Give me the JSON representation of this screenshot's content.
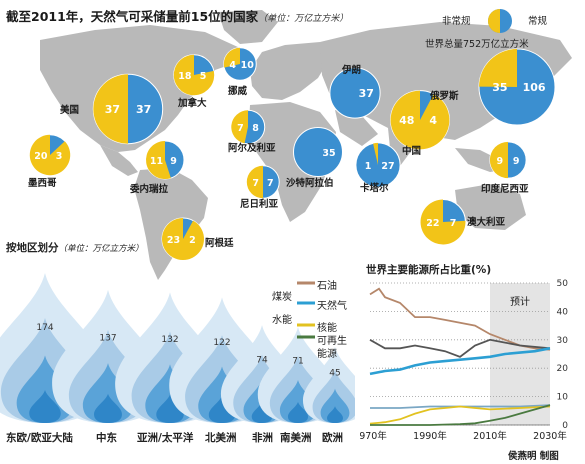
{
  "title": "截至2011年，天然气可采储量前15位的国家",
  "title_unit": "（单位：万亿立方米）",
  "legend": {
    "nonconventional": "非常规",
    "conventional": "常规"
  },
  "world_total": "世界总量752万亿立方米",
  "colors": {
    "nonconventional": "#f2c418",
    "conventional": "#3b8fd0",
    "map": "#b9b9b9",
    "flame_light": "#cfe3f3",
    "flame_dark": "#2f86c8"
  },
  "chart_data": [
    {
      "type": "pie",
      "title": "截至2011年，天然气可采储量前15位的国家",
      "unit": "万亿立方米",
      "legend": [
        "非常规",
        "常规"
      ],
      "countries": [
        {
          "name": "美国",
          "nonconventional": 37,
          "conventional": 37
        },
        {
          "name": "加拿大",
          "nonconventional": 18,
          "conventional": 5
        },
        {
          "name": "挪威",
          "nonconventional": 4,
          "conventional": 10
        },
        {
          "name": "伊朗",
          "nonconventional": 0,
          "conventional": 37
        },
        {
          "name": "俄罗斯",
          "nonconventional": 35,
          "conventional": 106
        },
        {
          "name": "墨西哥",
          "nonconventional": 20,
          "conventional": 3
        },
        {
          "name": "委内瑞拉",
          "nonconventional": 11,
          "conventional": 9
        },
        {
          "name": "阿尔及利亚",
          "nonconventional": 7,
          "conventional": 8
        },
        {
          "name": "沙特阿拉伯",
          "nonconventional": 0,
          "conventional": 35
        },
        {
          "name": "卡塔尔",
          "nonconventional": 1,
          "conventional": 27
        },
        {
          "name": "中国",
          "nonconventional": 48,
          "conventional": 4
        },
        {
          "name": "印度尼西亚",
          "nonconventional": 9,
          "conventional": 9
        },
        {
          "name": "尼日利亚",
          "nonconventional": 7,
          "conventional": 7
        },
        {
          "name": "澳大利亚",
          "nonconventional": 22,
          "conventional": 7
        },
        {
          "name": "阿根廷",
          "nonconventional": 23,
          "conventional": 2
        }
      ]
    },
    {
      "type": "bar",
      "title": "按地区划分",
      "unit": "（单位：万亿立方米）",
      "categories": [
        "东欧/欧亚大陆",
        "中东",
        "亚洲/太平洋",
        "北美洲",
        "非洲",
        "南美洲",
        "欧洲"
      ],
      "values": [
        174,
        137,
        132,
        122,
        74,
        71,
        45
      ]
    },
    {
      "type": "line",
      "title": "世界主要能源所占比重(%)",
      "x_ticks": [
        "1970年",
        "1990年",
        "2010年",
        "2030年"
      ],
      "y_ticks": [
        "0",
        "10",
        "20",
        "30",
        "40",
        "50"
      ],
      "xlim": [
        1970,
        2030
      ],
      "ylim": [
        0,
        50
      ],
      "forecast_label": "预计",
      "forecast_range": [
        2010,
        2030
      ],
      "series": [
        {
          "name": "石油",
          "color": "#b5876a",
          "x": [
            1970,
            1973,
            1975,
            1980,
            1985,
            1990,
            1995,
            2000,
            2005,
            2010,
            2015,
            2020,
            2025,
            2030
          ],
          "y": [
            46,
            48,
            45,
            43,
            38,
            38,
            37,
            36,
            35,
            32,
            30,
            28,
            27,
            26.5
          ]
        },
        {
          "name": "煤炭",
          "color": "#555555",
          "x": [
            1970,
            1975,
            1980,
            1985,
            1990,
            1995,
            2000,
            2005,
            2010,
            2015,
            2020,
            2025,
            2030
          ],
          "y": [
            30,
            27,
            27,
            28,
            27,
            26,
            24,
            28,
            30,
            29,
            28,
            27.5,
            27
          ]
        },
        {
          "name": "天然气",
          "color": "#2c9fd3",
          "x": [
            1970,
            1975,
            1980,
            1985,
            1990,
            1995,
            2000,
            2005,
            2010,
            2015,
            2020,
            2025,
            2030
          ],
          "y": [
            18,
            19,
            19.5,
            21,
            22,
            22.5,
            23,
            23.5,
            24,
            25,
            25.5,
            26,
            27
          ]
        },
        {
          "name": "水能",
          "color": "#7aa7c4",
          "x": [
            1970,
            1980,
            1990,
            2000,
            2010,
            2020,
            2030
          ],
          "y": [
            6,
            6,
            6.5,
            6.5,
            6.5,
            6.5,
            7
          ]
        },
        {
          "name": "核能",
          "color": "#e2c220",
          "x": [
            1970,
            1975,
            1980,
            1985,
            1990,
            1995,
            2000,
            2005,
            2010,
            2020,
            2030
          ],
          "y": [
            0.5,
            1,
            2,
            4,
            5.5,
            6,
            6.5,
            6,
            5.5,
            6,
            6.5
          ]
        },
        {
          "name": "可再生能源",
          "color": "#4a7a40",
          "x": [
            1970,
            1990,
            2000,
            2005,
            2010,
            2015,
            2020,
            2025,
            2030
          ],
          "y": [
            0,
            0,
            0.3,
            0.6,
            1.5,
            2.5,
            4,
            5.5,
            7
          ]
        }
      ]
    }
  ],
  "trend_title": "世界主要能源所占比重(%)",
  "legend_lines": [
    "石油",
    "煤炭",
    "天然气",
    "水能",
    "核能",
    "可再生",
    "能源"
  ],
  "credit": "侯燕明 制图"
}
